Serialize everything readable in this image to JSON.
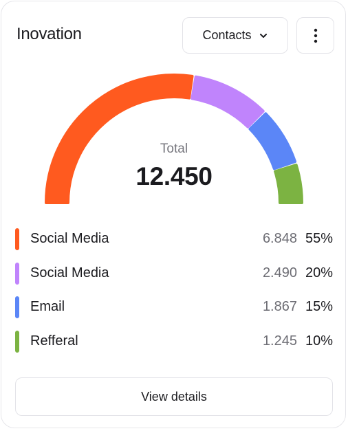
{
  "card": {
    "title": "Inovation",
    "filter": {
      "selected": "Contacts"
    },
    "more_icon": "vertical-ellipsis-icon",
    "dropdown_icon": "chevron-down-icon"
  },
  "chart_data": {
    "type": "pie",
    "total_label": "Total",
    "total_value": "12.450",
    "series": [
      {
        "name": "Social Media",
        "value": 6848,
        "value_label": "6.848",
        "percent": 55,
        "percent_label": "55%",
        "color": "#ff5a1f"
      },
      {
        "name": "Social Media",
        "value": 2490,
        "value_label": "2.490",
        "percent": 20,
        "percent_label": "20%",
        "color": "#c084fc"
      },
      {
        "name": "Email",
        "value": 1867,
        "value_label": "1.867",
        "percent": 15,
        "percent_label": "15%",
        "color": "#5b86f7"
      },
      {
        "name": "Refferal",
        "value": 1245,
        "value_label": "1.245",
        "percent": 10,
        "percent_label": "10%",
        "color": "#7cb342"
      }
    ]
  },
  "footer": {
    "details_label": "View details"
  }
}
